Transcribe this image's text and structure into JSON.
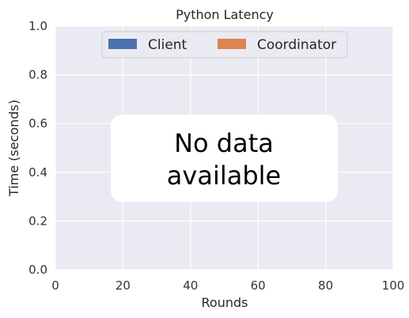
{
  "chart_data": {
    "type": "bar",
    "title": "Python Latency",
    "xlabel": "Rounds",
    "ylabel": "Time (seconds)",
    "xlim": [
      0,
      100
    ],
    "ylim": [
      0,
      1.0
    ],
    "xticks": [
      0,
      20,
      40,
      60,
      80,
      100
    ],
    "yticks": [
      0.0,
      0.2,
      0.4,
      0.6,
      0.8,
      1.0
    ],
    "xtick_labels": [
      "0",
      "20",
      "40",
      "60",
      "80",
      "100"
    ],
    "ytick_labels": [
      "0.0",
      "0.2",
      "0.4",
      "0.6",
      "0.8",
      "1.0"
    ],
    "grid": true,
    "stacked": true,
    "legend_position": "top-center",
    "series": [
      {
        "name": "Client",
        "color": "#4c72b0",
        "values": []
      },
      {
        "name": "Coordinator",
        "color": "#dd8452",
        "values": []
      }
    ],
    "annotation": {
      "line1": "No data",
      "line2": "available"
    },
    "colors": {
      "plot_background": "#eaeaf2",
      "grid": "#ffffff"
    }
  }
}
